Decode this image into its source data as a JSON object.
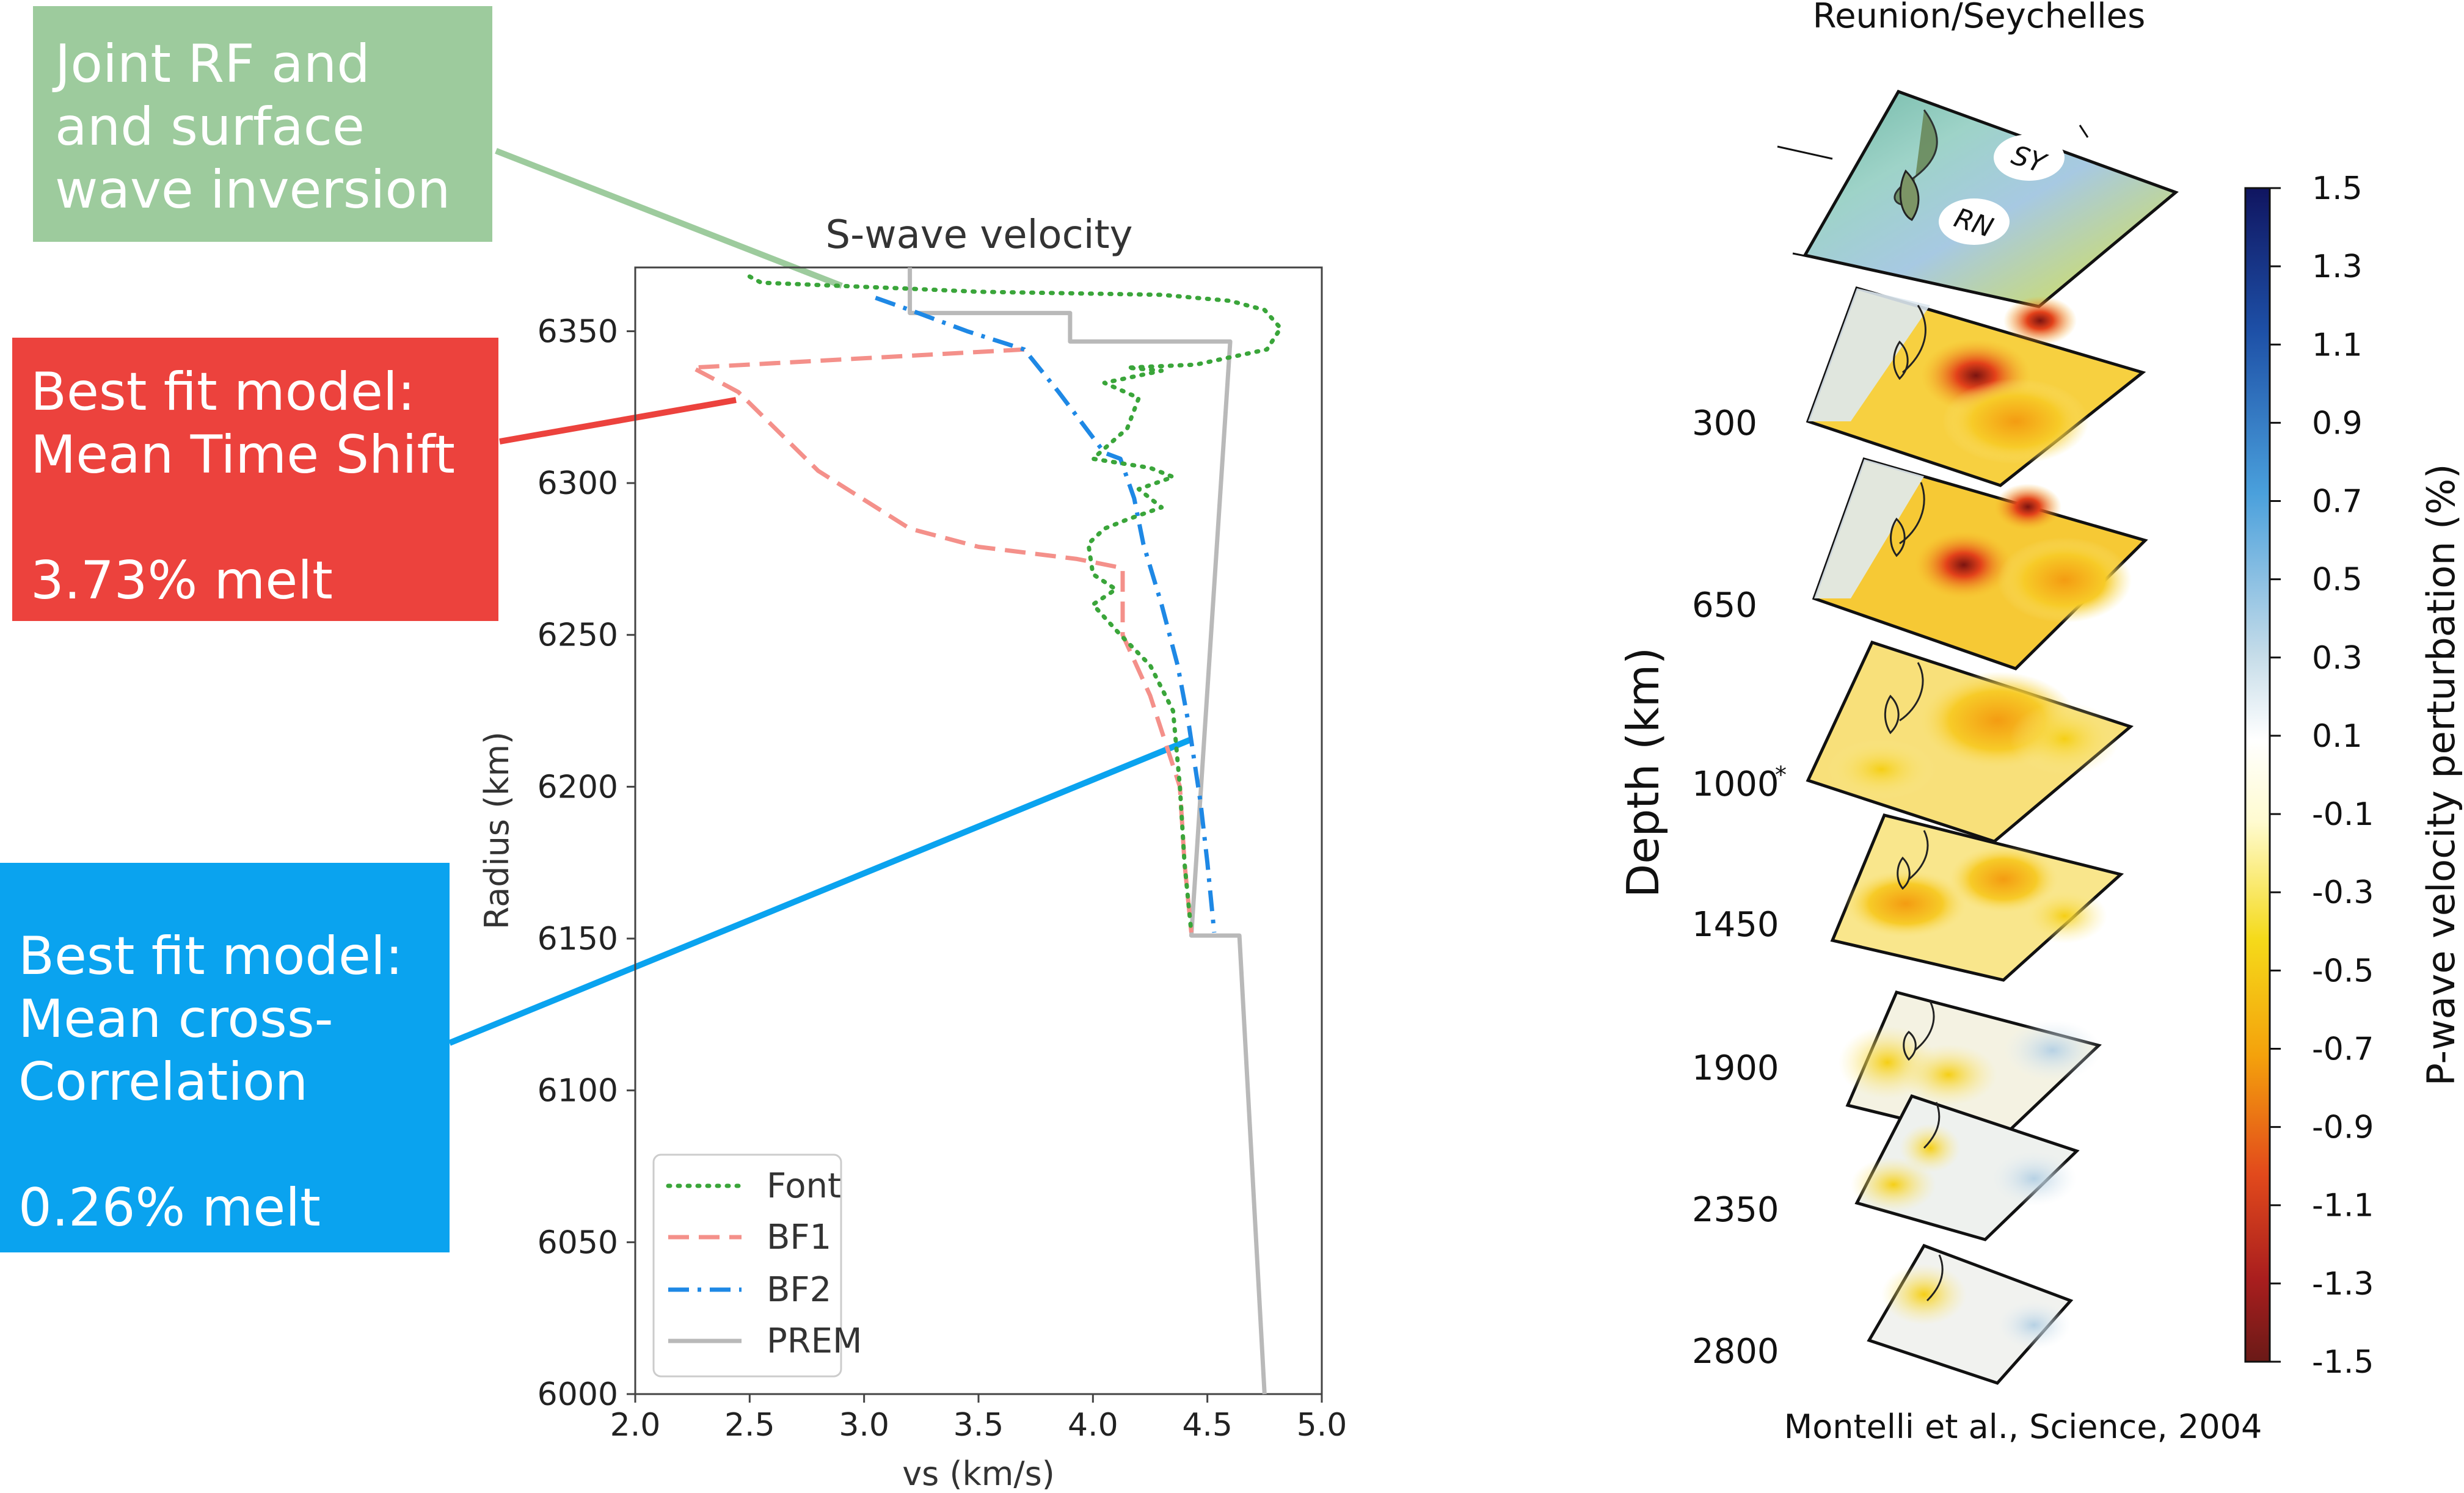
{
  "callouts": {
    "green": [
      "Joint RF and",
      "and surface",
      "wave inversion"
    ],
    "red": [
      "Best fit model:",
      "Mean Time Shift",
      "",
      "3.73% melt"
    ],
    "blue": [
      "Best fit model:",
      "Mean cross-",
      "Correlation",
      "",
      "0.26% melt"
    ]
  },
  "colors": {
    "green_box": "#9dcb9d",
    "red_box": "#ec423d",
    "blue_box": "#0aa3ef",
    "font_series": "#3aa53a",
    "bf1_series": "#f4908a",
    "bf2_series": "#1e88e5",
    "prem_series": "#b9b9b9"
  },
  "chart_data": [
    {
      "type": "line",
      "title": "S-wave velocity",
      "xlabel": "vs (km/s)",
      "ylabel": "Radius (km)",
      "xlim": [
        2.0,
        5.0
      ],
      "ylim": [
        6000,
        6371
      ],
      "xticks": [
        "2.0",
        "2.5",
        "3.0",
        "3.5",
        "4.0",
        "4.5",
        "5.0"
      ],
      "yticks": [
        "6000",
        "6050",
        "6100",
        "6150",
        "6200",
        "6250",
        "6300",
        "6350"
      ],
      "legend_position": "lower-left",
      "grid": false,
      "series": [
        {
          "name": "Font",
          "style": "dotted",
          "points": [
            [
              2.5,
              6368
            ],
            [
              2.55,
              6366
            ],
            [
              3.2,
              6364
            ],
            [
              3.5,
              6363
            ],
            [
              4.3,
              6362
            ],
            [
              4.6,
              6360
            ],
            [
              4.75,
              6357
            ],
            [
              4.82,
              6351
            ],
            [
              4.76,
              6344
            ],
            [
              4.45,
              6339
            ],
            [
              4.15,
              6338
            ],
            [
              4.3,
              6337
            ],
            [
              4.05,
              6333
            ],
            [
              4.2,
              6328
            ],
            [
              4.15,
              6318
            ],
            [
              4.0,
              6308
            ],
            [
              4.25,
              6305
            ],
            [
              4.35,
              6302
            ],
            [
              4.2,
              6298
            ],
            [
              4.3,
              6292
            ],
            [
              4.15,
              6288
            ],
            [
              4.05,
              6285
            ],
            [
              3.98,
              6280
            ],
            [
              4.0,
              6270
            ],
            [
              4.1,
              6265
            ],
            [
              4.0,
              6260
            ],
            [
              4.12,
              6250
            ],
            [
              4.25,
              6240
            ],
            [
              4.35,
              6225
            ],
            [
              4.38,
              6200
            ],
            [
              4.4,
              6175
            ],
            [
              4.43,
              6152
            ]
          ]
        },
        {
          "name": "BF1",
          "style": "dashed",
          "points": [
            [
              3.7,
              6344
            ],
            [
              2.25,
              6338
            ],
            [
              2.4,
              6332
            ],
            [
              2.45,
              6330
            ],
            [
              2.8,
              6304
            ],
            [
              3.2,
              6285
            ],
            [
              3.5,
              6279
            ],
            [
              3.93,
              6275
            ],
            [
              4.13,
              6272
            ],
            [
              4.13,
              6250
            ],
            [
              4.25,
              6230
            ],
            [
              4.38,
              6200
            ],
            [
              4.4,
              6175
            ],
            [
              4.43,
              6152
            ]
          ]
        },
        {
          "name": "BF2",
          "style": "dashdot",
          "points": [
            [
              3.05,
              6361
            ],
            [
              3.2,
              6357
            ],
            [
              3.45,
              6350
            ],
            [
              3.7,
              6344
            ],
            [
              3.85,
              6330
            ],
            [
              3.95,
              6320
            ],
            [
              4.05,
              6310
            ],
            [
              4.12,
              6308
            ],
            [
              4.18,
              6295
            ],
            [
              4.22,
              6280
            ],
            [
              4.3,
              6260
            ],
            [
              4.37,
              6240
            ],
            [
              4.42,
              6220
            ],
            [
              4.47,
              6195
            ],
            [
              4.5,
              6175
            ],
            [
              4.53,
              6152
            ]
          ]
        },
        {
          "name": "PREM",
          "style": "solid",
          "points": [
            [
              3.2,
              6371
            ],
            [
              3.2,
              6356
            ],
            [
              3.9,
              6356
            ],
            [
              3.9,
              6346.6
            ],
            [
              4.6,
              6346.6
            ],
            [
              4.43,
              6151
            ],
            [
              4.64,
              6151
            ],
            [
              4.75,
              6000
            ]
          ]
        }
      ]
    },
    {
      "type": "heatmap",
      "title": "Reunion/Seychelles",
      "ylabel": "Depth (km)",
      "depth_labels": [
        "300",
        "650",
        "1000",
        "1450",
        "1900",
        "2350",
        "2800"
      ],
      "depth_footnote": "*",
      "map_labels": [
        "SY",
        "RN"
      ],
      "colorbar_label": "P-wave velocity perturbation (%)",
      "colorbar_ticks": [
        "1.5",
        "1.3",
        "1.1",
        "0.9",
        "0.7",
        "0.5",
        "0.3",
        "0.1",
        "-0.1",
        "-0.3",
        "-0.5",
        "-0.7",
        "-0.9",
        "-1.1",
        "-1.3",
        "-1.5"
      ],
      "source": "Montelli et al., Science, 2004"
    }
  ]
}
